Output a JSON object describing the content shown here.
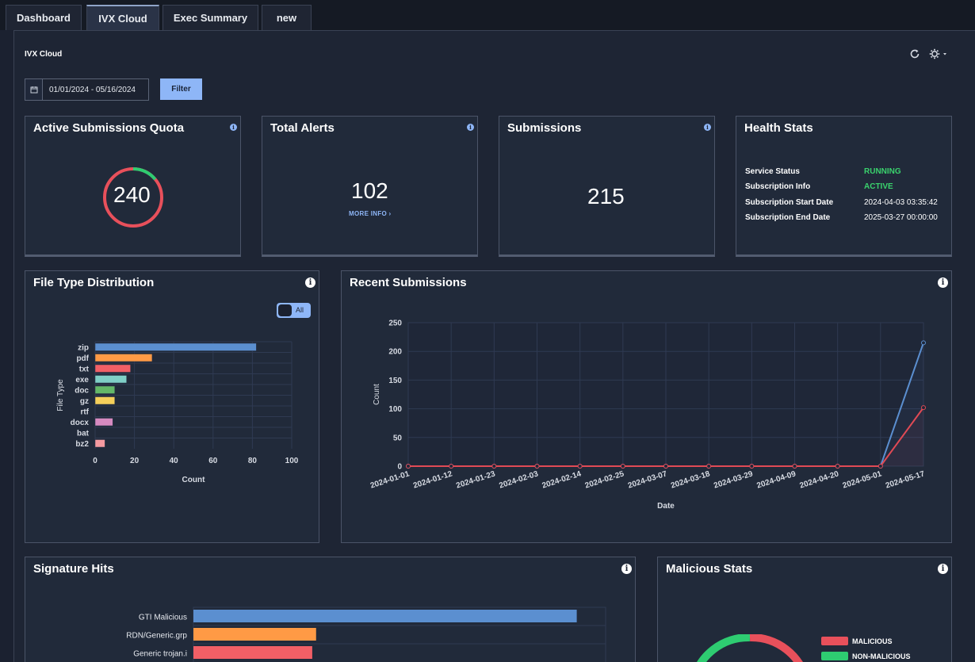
{
  "tabs": [
    {
      "label": "Dashboard"
    },
    {
      "label": "IVX Cloud"
    },
    {
      "label": "Exec Summary"
    },
    {
      "label": "new"
    }
  ],
  "panel": {
    "title": "IVX Cloud",
    "refresh_icon": "refresh-icon",
    "settings_icon": "gear-icon"
  },
  "filter": {
    "date_range": "01/01/2024 - 05/16/2024",
    "button_label": "Filter",
    "calendar_icon": "calendar-icon"
  },
  "quota": {
    "title": "Active Submissions Quota",
    "value": "240",
    "used_fraction": 0.86
  },
  "alerts": {
    "title": "Total Alerts",
    "value": "102",
    "more_info": "MORE INFO ›"
  },
  "submissions": {
    "title": "Submissions",
    "value": "215"
  },
  "health": {
    "title": "Health Stats",
    "rows": [
      {
        "label": "Service Status",
        "value": "RUNNING"
      },
      {
        "label": "Subscription Info",
        "value": "ACTIVE"
      },
      {
        "label": "Subscription Start Date",
        "value": "2024-04-03 03:35:42"
      },
      {
        "label": "Subscription End Date",
        "value": "2025-03-27 00:00:00"
      }
    ]
  },
  "file_type": {
    "title": "File Type Distribution",
    "toggle_label": "All"
  },
  "recent": {
    "title": "Recent Submissions"
  },
  "signature": {
    "title": "Signature Hits"
  },
  "malicious": {
    "title": "Malicious Stats",
    "legend": [
      {
        "label": "MALICIOUS",
        "color": "#e8505b"
      },
      {
        "label": "NON-MALICIOUS",
        "color": "#2ecc71"
      }
    ]
  },
  "chart_data": [
    {
      "type": "bar",
      "orientation": "horizontal",
      "categories": [
        "zip",
        "pdf",
        "txt",
        "exe",
        "doc",
        "gz",
        "rtf",
        "docx",
        "bat",
        "bz2"
      ],
      "values": [
        82,
        29,
        18,
        16,
        10,
        10,
        0,
        9,
        0,
        5
      ],
      "colors": [
        "#5b8fd0",
        "#ff9a45",
        "#f25f66",
        "#7fcfc6",
        "#64b868",
        "#f5cf5a",
        "#b07ab0",
        "#d68ac0",
        "#999999",
        "#f59aa0"
      ],
      "xlabel": "Count",
      "ylabel": "File Type",
      "xlim": [
        0,
        100
      ],
      "xticks": [
        "0",
        "20",
        "40",
        "60",
        "80",
        "100"
      ]
    },
    {
      "type": "line",
      "x": [
        "2024-01-01",
        "2024-01-12",
        "2024-01-23",
        "2024-02-03",
        "2024-02-14",
        "2024-02-25",
        "2024-03-07",
        "2024-03-18",
        "2024-03-29",
        "2024-04-09",
        "2024-04-20",
        "2024-05-01",
        "2024-05-17"
      ],
      "series": [
        {
          "values": [
            0,
            0,
            0,
            0,
            0,
            0,
            0,
            0,
            0,
            0,
            0,
            0,
            215
          ],
          "color": "#5b8fd0"
        },
        {
          "values": [
            0,
            0,
            0,
            0,
            0,
            0,
            0,
            0,
            0,
            0,
            0,
            0,
            102
          ],
          "color": "#e04a55"
        }
      ],
      "xlabel": "Date",
      "ylabel": "Count",
      "ylim": [
        0,
        250
      ],
      "yticks": [
        "0",
        "50",
        "100",
        "150",
        "200",
        "250"
      ]
    },
    {
      "type": "bar",
      "orientation": "horizontal",
      "categories": [
        "GTI Malicious",
        "RDN/Generic.grp",
        "Generic trojan.i"
      ],
      "values": [
        100,
        32,
        31
      ],
      "colors": [
        "#5b8fd0",
        "#ff9a45",
        "#f25f66"
      ]
    }
  ]
}
